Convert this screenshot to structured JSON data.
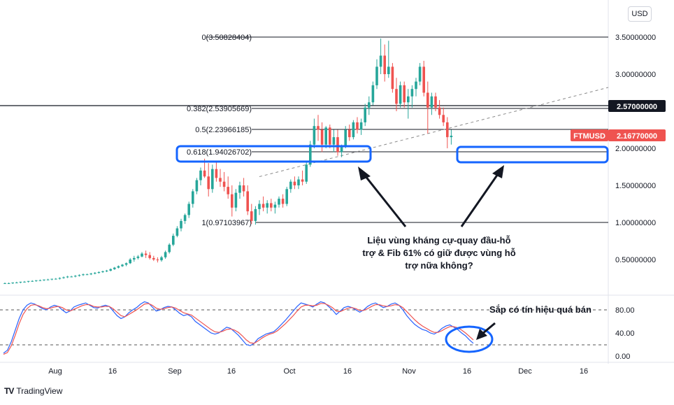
{
  "currency_button": "USD",
  "brand": {
    "name": "TradingView",
    "logo": "TV"
  },
  "fib_levels": [
    {
      "label": "0(3.50828404)",
      "value": 3.50828404
    },
    {
      "label": "0.382(2.53905669)",
      "value": 2.53905669
    },
    {
      "label": "0.5(2.23966185)",
      "value": 2.23966185
    },
    {
      "label": "0.618(1.94026702)",
      "value": 1.94026702
    },
    {
      "label": "1(0.97103967)",
      "value": 0.97103967
    }
  ],
  "price_badges": [
    {
      "label": "",
      "value_text": "2.57000000",
      "value": 2.57,
      "color": "#131722"
    },
    {
      "label": "FTMUSD",
      "value_text": "2.16770000",
      "value": 2.1677,
      "color": "#ef5350"
    }
  ],
  "annotations": {
    "main_note": [
      "Liệu vùng kháng cự-quay đầu-hỗ",
      "trợ & Fib 61% có giữ được vùng hỗ",
      "trợ nữa không?"
    ],
    "stoch_note": "Sắp có tín hiệu quá bán"
  },
  "chart_data": [
    {
      "type": "candlestick",
      "title": "",
      "symbol": "FTMUSD",
      "ylim": [
        0,
        3.8
      ],
      "y_ticks": [
        {
          "value": 3.5,
          "label": "3.50000000"
        },
        {
          "value": 3.0,
          "label": "3.00000000"
        },
        {
          "value": 2.0,
          "label": "2.00000000"
        },
        {
          "value": 1.5,
          "label": "1.50000000"
        },
        {
          "value": 1.0,
          "label": "1.00000000"
        },
        {
          "value": 0.5,
          "label": "0.50000000"
        }
      ],
      "x_ticks": [
        "Aug",
        "16",
        "Sep",
        "16",
        "Oct",
        "16",
        "Nov",
        "16",
        "Dec",
        "16"
      ],
      "horizontal_line": 2.57,
      "trendline": {
        "from": [
          40,
          1.28
        ],
        "to": [
          180,
          3.17
        ],
        "style": "dashed"
      },
      "candles": [
        [
          0.18,
          0.19,
          0.17,
          0.18
        ],
        [
          0.18,
          0.19,
          0.17,
          0.18
        ],
        [
          0.18,
          0.19,
          0.17,
          0.19
        ],
        [
          0.19,
          0.2,
          0.18,
          0.19
        ],
        [
          0.19,
          0.2,
          0.18,
          0.2
        ],
        [
          0.2,
          0.21,
          0.19,
          0.2
        ],
        [
          0.2,
          0.21,
          0.19,
          0.21
        ],
        [
          0.21,
          0.22,
          0.2,
          0.21
        ],
        [
          0.21,
          0.22,
          0.2,
          0.22
        ],
        [
          0.22,
          0.23,
          0.21,
          0.22
        ],
        [
          0.22,
          0.23,
          0.21,
          0.23
        ],
        [
          0.23,
          0.24,
          0.22,
          0.23
        ],
        [
          0.23,
          0.24,
          0.22,
          0.24
        ],
        [
          0.24,
          0.25,
          0.23,
          0.24
        ],
        [
          0.24,
          0.26,
          0.23,
          0.25
        ],
        [
          0.25,
          0.27,
          0.24,
          0.26
        ],
        [
          0.26,
          0.28,
          0.25,
          0.27
        ],
        [
          0.27,
          0.28,
          0.26,
          0.27
        ],
        [
          0.27,
          0.29,
          0.26,
          0.28
        ],
        [
          0.28,
          0.3,
          0.27,
          0.29
        ],
        [
          0.29,
          0.31,
          0.28,
          0.3
        ],
        [
          0.3,
          0.31,
          0.29,
          0.3
        ],
        [
          0.3,
          0.32,
          0.29,
          0.31
        ],
        [
          0.31,
          0.33,
          0.3,
          0.32
        ],
        [
          0.32,
          0.34,
          0.31,
          0.33
        ],
        [
          0.33,
          0.35,
          0.32,
          0.34
        ],
        [
          0.34,
          0.36,
          0.33,
          0.35
        ],
        [
          0.35,
          0.38,
          0.34,
          0.37
        ],
        [
          0.37,
          0.4,
          0.36,
          0.39
        ],
        [
          0.39,
          0.42,
          0.38,
          0.41
        ],
        [
          0.41,
          0.44,
          0.4,
          0.43
        ],
        [
          0.43,
          0.46,
          0.41,
          0.45
        ],
        [
          0.45,
          0.52,
          0.44,
          0.5
        ],
        [
          0.5,
          0.55,
          0.47,
          0.52
        ],
        [
          0.52,
          0.56,
          0.5,
          0.54
        ],
        [
          0.54,
          0.6,
          0.53,
          0.58
        ],
        [
          0.58,
          0.62,
          0.52,
          0.56
        ],
        [
          0.56,
          0.6,
          0.5,
          0.52
        ],
        [
          0.52,
          0.55,
          0.48,
          0.5
        ],
        [
          0.5,
          0.53,
          0.46,
          0.49
        ],
        [
          0.49,
          0.55,
          0.47,
          0.53
        ],
        [
          0.53,
          0.62,
          0.51,
          0.6
        ],
        [
          0.6,
          0.72,
          0.58,
          0.7
        ],
        [
          0.7,
          0.85,
          0.68,
          0.82
        ],
        [
          0.82,
          0.95,
          0.8,
          0.92
        ],
        [
          0.92,
          1.05,
          0.88,
          1.02
        ],
        [
          1.02,
          1.12,
          0.98,
          1.1
        ],
        [
          1.1,
          1.28,
          1.06,
          1.25
        ],
        [
          1.25,
          1.45,
          1.2,
          1.42
        ],
        [
          1.42,
          1.6,
          1.38,
          1.57
        ],
        [
          1.57,
          1.74,
          1.5,
          1.7
        ],
        [
          1.7,
          1.86,
          1.6,
          1.62
        ],
        [
          1.62,
          1.8,
          1.35,
          1.45
        ],
        [
          1.45,
          1.78,
          1.4,
          1.72
        ],
        [
          1.72,
          1.82,
          1.55,
          1.6
        ],
        [
          1.6,
          1.72,
          1.48,
          1.55
        ],
        [
          1.55,
          1.68,
          1.42,
          1.48
        ],
        [
          1.48,
          1.62,
          1.32,
          1.38
        ],
        [
          1.38,
          1.5,
          1.08,
          1.2
        ],
        [
          1.2,
          1.45,
          1.15,
          1.4
        ],
        [
          1.4,
          1.55,
          1.32,
          1.5
        ],
        [
          1.5,
          1.6,
          1.35,
          1.42
        ],
        [
          1.42,
          1.5,
          1.1,
          1.15
        ],
        [
          1.15,
          1.25,
          0.98,
          1.02
        ],
        [
          1.02,
          1.22,
          0.97,
          1.18
        ],
        [
          1.18,
          1.3,
          1.1,
          1.25
        ],
        [
          1.25,
          1.35,
          1.15,
          1.2
        ],
        [
          1.2,
          1.3,
          1.12,
          1.26
        ],
        [
          1.26,
          1.32,
          1.15,
          1.2
        ],
        [
          1.2,
          1.28,
          1.12,
          1.24
        ],
        [
          1.24,
          1.35,
          1.2,
          1.32
        ],
        [
          1.32,
          1.38,
          1.2,
          1.25
        ],
        [
          1.25,
          1.48,
          1.22,
          1.45
        ],
        [
          1.45,
          1.58,
          1.4,
          1.55
        ],
        [
          1.55,
          1.62,
          1.45,
          1.5
        ],
        [
          1.5,
          1.62,
          1.45,
          1.58
        ],
        [
          1.58,
          1.7,
          1.5,
          1.55
        ],
        [
          1.55,
          1.82,
          1.52,
          1.78
        ],
        [
          1.78,
          2.1,
          1.75,
          2.05
        ],
        [
          2.05,
          2.4,
          2.0,
          2.3
        ],
        [
          2.3,
          2.45,
          2.1,
          2.25
        ],
        [
          2.25,
          2.35,
          1.95,
          2.05
        ],
        [
          2.05,
          2.3,
          2.0,
          2.28
        ],
        [
          2.28,
          2.32,
          2.0,
          2.05
        ],
        [
          2.05,
          2.25,
          1.95,
          2.15
        ],
        [
          2.15,
          2.25,
          1.9,
          1.95
        ],
        [
          1.95,
          2.05,
          1.88,
          2.02
        ],
        [
          2.02,
          2.3,
          2.0,
          2.25
        ],
        [
          2.25,
          2.32,
          2.1,
          2.15
        ],
        [
          2.15,
          2.38,
          2.12,
          2.35
        ],
        [
          2.35,
          2.42,
          2.2,
          2.25
        ],
        [
          2.25,
          2.4,
          2.18,
          2.35
        ],
        [
          2.35,
          2.6,
          2.3,
          2.55
        ],
        [
          2.55,
          2.7,
          2.45,
          2.62
        ],
        [
          2.62,
          2.9,
          2.58,
          2.85
        ],
        [
          2.85,
          3.2,
          2.8,
          3.1
        ],
        [
          3.1,
          3.48,
          3.0,
          3.25
        ],
        [
          3.25,
          3.4,
          2.9,
          3.0
        ],
        [
          3.0,
          3.45,
          2.95,
          3.1
        ],
        [
          3.1,
          3.15,
          2.75,
          2.8
        ],
        [
          2.8,
          2.95,
          2.5,
          2.6
        ],
        [
          2.6,
          2.9,
          2.55,
          2.85
        ],
        [
          2.85,
          2.9,
          2.55,
          2.62
        ],
        [
          2.62,
          2.8,
          2.4,
          2.7
        ],
        [
          2.7,
          2.85,
          2.55,
          2.8
        ],
        [
          2.8,
          2.95,
          2.7,
          2.9
        ],
        [
          2.9,
          3.15,
          2.85,
          3.1
        ],
        [
          3.1,
          3.18,
          2.7,
          2.75
        ],
        [
          2.75,
          2.9,
          2.2,
          2.55
        ],
        [
          2.55,
          2.75,
          2.45,
          2.7
        ],
        [
          2.7,
          2.75,
          2.5,
          2.55
        ],
        [
          2.55,
          2.65,
          2.4,
          2.45
        ],
        [
          2.45,
          2.55,
          2.3,
          2.35
        ],
        [
          2.35,
          2.42,
          2.0,
          2.15
        ],
        [
          2.15,
          2.25,
          2.05,
          2.17
        ]
      ]
    },
    {
      "type": "line",
      "title": "",
      "ylim": [
        0,
        100
      ],
      "y_ticks": [
        {
          "value": 80,
          "label": "80.00"
        },
        {
          "value": 40,
          "label": "40.00"
        },
        {
          "value": 0,
          "label": "0.00"
        }
      ],
      "reference_lines": [
        80,
        20
      ],
      "series": [
        {
          "color": "#2962ff",
          "values": [
            5,
            10,
            25,
            45,
            65,
            80,
            88,
            92,
            90,
            86,
            82,
            80,
            85,
            88,
            86,
            80,
            75,
            78,
            85,
            88,
            90,
            92,
            88,
            84,
            83,
            86,
            88,
            86,
            78,
            70,
            65,
            68,
            75,
            80,
            84,
            90,
            94,
            92,
            85,
            78,
            80,
            84,
            86,
            85,
            80,
            74,
            70,
            72,
            68,
            60,
            55,
            50,
            45,
            40,
            38,
            40,
            45,
            50,
            48,
            42,
            36,
            28,
            20,
            18,
            22,
            30,
            34,
            38,
            40,
            42,
            48,
            55,
            62,
            70,
            78,
            86,
            92,
            90,
            88,
            85,
            90,
            94,
            92,
            86,
            80,
            72,
            78,
            84,
            86,
            84,
            80,
            76,
            80,
            86,
            90,
            92,
            88,
            84,
            86,
            90,
            92,
            88,
            80,
            70,
            62,
            55,
            50,
            46,
            44,
            40,
            38,
            42,
            48,
            52,
            54,
            50,
            46,
            40,
            35,
            28,
            22
          ]
        },
        {
          "color": "#ef5350",
          "values": [
            3,
            6,
            18,
            36,
            56,
            72,
            82,
            88,
            89,
            87,
            84,
            82,
            83,
            85,
            86,
            84,
            80,
            78,
            81,
            84,
            87,
            89,
            89,
            86,
            85,
            85,
            86,
            86,
            82,
            76,
            70,
            68,
            72,
            76,
            80,
            85,
            90,
            91,
            88,
            83,
            81,
            82,
            84,
            85,
            83,
            79,
            75,
            73,
            71,
            66,
            61,
            56,
            51,
            46,
            42,
            41,
            43,
            46,
            47,
            45,
            41,
            35,
            28,
            23,
            22,
            26,
            31,
            35,
            38,
            40,
            44,
            50,
            56,
            63,
            70,
            78,
            85,
            88,
            88,
            87,
            88,
            91,
            91,
            88,
            84,
            78,
            77,
            80,
            83,
            84,
            82,
            79,
            79,
            82,
            86,
            89,
            89,
            87,
            86,
            87,
            89,
            88,
            84,
            77,
            70,
            63,
            57,
            52,
            48,
            44,
            41,
            41,
            44,
            48,
            51,
            51,
            49,
            45,
            40,
            34,
            28
          ]
        }
      ]
    }
  ]
}
